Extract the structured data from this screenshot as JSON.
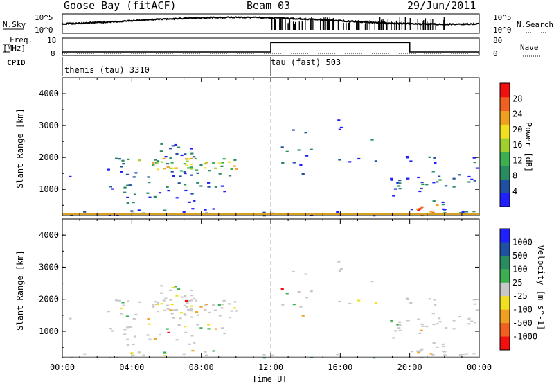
{
  "header": {
    "station": "Goose Bay (fitACF)",
    "beam": "Beam 03",
    "date": "29/Jun/2011"
  },
  "left_labels": {
    "nsky": "N.Sky",
    "freq": "Freq.",
    "freq_unit": "[MHz]",
    "cpid": "CPID"
  },
  "right_labels": {
    "nsearch": "N.Search",
    "nave": "Nave"
  },
  "noise_axis": {
    "top": "10^5",
    "bottom": "10^0"
  },
  "freq_axis": {
    "top": "18",
    "bottom": "8"
  },
  "nave_axis": {
    "top": "80",
    "bottom": "0"
  },
  "cpid_entries": [
    {
      "label": "themis (tau) 3310",
      "start_hour": 0
    },
    {
      "label": "tau (fast) 503",
      "start_hour": 12
    }
  ],
  "colors": {
    "power_scale": [
      "#2020ff",
      "#2050a0",
      "#2a8a60",
      "#3cb050",
      "#a0d030",
      "#f0e020",
      "#f0a020",
      "#f06020",
      "#f01010"
    ],
    "velocity_scale": [
      "#2020ff",
      "#2050a0",
      "#2a8a60",
      "#3cb050",
      "#c8c8c8",
      "#f0e020",
      "#f0a020",
      "#f06020",
      "#f01010"
    ]
  },
  "chart_data": [
    {
      "type": "heatmap",
      "name": "power-panel",
      "xlabel": "",
      "ylabel": "Slant Range [km]",
      "xlim": [
        0,
        24
      ],
      "ylim": [
        180,
        4500
      ],
      "yticks": [
        1000,
        2000,
        3000,
        4000
      ],
      "colorbar_label": "Power [dB]",
      "colorbar_ticks": [
        "4",
        "8",
        "12",
        "16",
        "20",
        "24",
        "28"
      ],
      "colorbar_range": [
        0,
        30
      ]
    },
    {
      "type": "heatmap",
      "name": "velocity-panel",
      "xlabel": "Time UT",
      "ylabel": "Slant Range [km]",
      "xlim": [
        0,
        24
      ],
      "ylim": [
        180,
        4500
      ],
      "yticks": [
        1000,
        2000,
        3000,
        4000
      ],
      "xticks": [
        "00:00",
        "04:00",
        "08:00",
        "12:00",
        "16:00",
        "20:00",
        "00:00"
      ],
      "colorbar_label": "Velocity [m s^-1]",
      "colorbar_ticks": [
        "1000",
        "500",
        "100",
        "25",
        "-25",
        "-100",
        "-500",
        "-1000"
      ]
    },
    {
      "type": "line",
      "name": "frequency",
      "x": [
        0,
        12,
        12,
        20,
        20,
        24
      ],
      "y": [
        10,
        10,
        15.5,
        15.5,
        10,
        10
      ]
    }
  ]
}
